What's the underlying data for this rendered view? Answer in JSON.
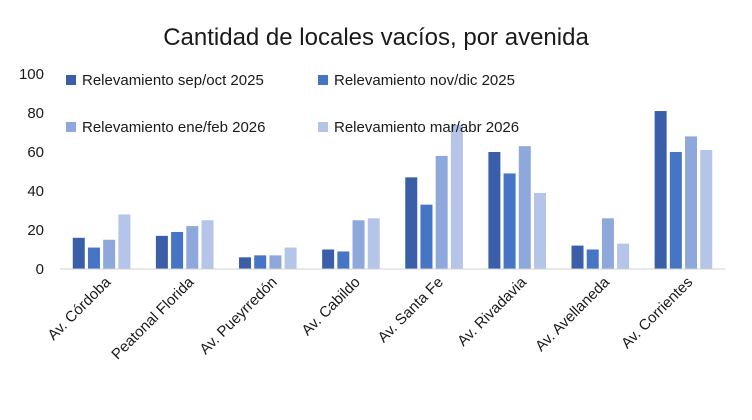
{
  "chart_data": {
    "type": "bar",
    "title": "Cantidad de locales vacíos, por avenida",
    "xlabel": "",
    "ylabel": "",
    "ylim": [
      0,
      100
    ],
    "yticks": [
      0,
      20,
      40,
      60,
      80,
      100
    ],
    "grid": false,
    "legend_position": "top-right",
    "categories": [
      "Av. Córdoba",
      "Peatonal Florida",
      "Av. Pueyrredón",
      "Av. Cabildo",
      "Av. Santa Fe",
      "Av. Rivadavia",
      "Av. Avellaneda",
      "Av. Corrientes"
    ],
    "series": [
      {
        "name": "Relevamiento sep/oct 2025",
        "color": "#3a5ea8",
        "values": [
          16,
          17,
          6,
          10,
          47,
          60,
          12,
          81
        ]
      },
      {
        "name": "Relevamiento nov/dic 2025",
        "color": "#4675c6",
        "values": [
          11,
          19,
          7,
          9,
          33,
          49,
          10,
          60
        ]
      },
      {
        "name": "Relevamiento ene/feb 2026",
        "color": "#8ea8db",
        "values": [
          15,
          22,
          7,
          25,
          58,
          63,
          26,
          68
        ]
      },
      {
        "name": "Relevamiento mar/abr 2026",
        "color": "#b5c5e9",
        "values": [
          28,
          25,
          11,
          26,
          74,
          39,
          13,
          61
        ]
      }
    ]
  }
}
